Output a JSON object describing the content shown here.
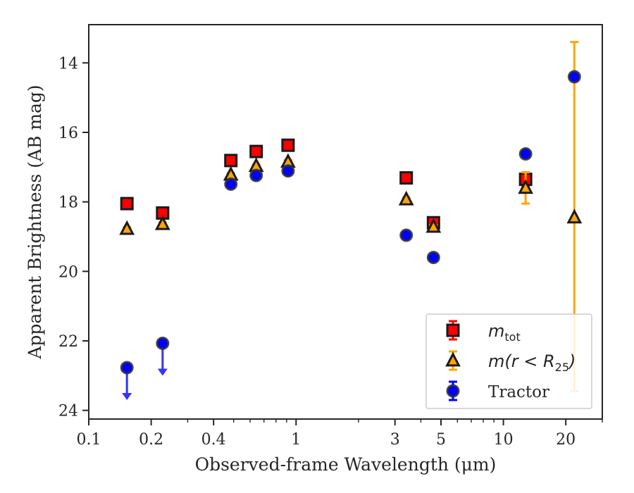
{
  "chart_data": {
    "type": "scatter",
    "title": "",
    "xlabel": "Observed-frame Wavelength (μm)",
    "ylabel": "Apparent Brightness (AB mag)",
    "xscale": "log",
    "yscale": "linear",
    "y_inverted": true,
    "xlim": [
      0.1,
      30
    ],
    "ylim": [
      24.25,
      12.9
    ],
    "xticks": [
      {
        "value": 0.1,
        "label": "0.1"
      },
      {
        "value": 0.2,
        "label": "0.2"
      },
      {
        "value": 0.4,
        "label": "0.4"
      },
      {
        "value": 1,
        "label": "1"
      },
      {
        "value": 3,
        "label": "3"
      },
      {
        "value": 5,
        "label": "5"
      },
      {
        "value": 10,
        "label": "10"
      },
      {
        "value": 20,
        "label": "20"
      }
    ],
    "yticks": [
      {
        "value": 14,
        "label": "14"
      },
      {
        "value": 16,
        "label": "16"
      },
      {
        "value": 18,
        "label": "18"
      },
      {
        "value": 20,
        "label": "20"
      },
      {
        "value": 22,
        "label": "22"
      },
      {
        "value": 24,
        "label": "24"
      }
    ],
    "grid": false,
    "legend": {
      "position": "lower-right",
      "entries": [
        {
          "series": 0,
          "label_math": "m",
          "label_sub": "tot",
          "label_tail": ""
        },
        {
          "series": 1,
          "label_math": "m(r < R",
          "label_sub": "25",
          "label_tail": ")"
        },
        {
          "series": 2,
          "label_math": "",
          "label_sub": "",
          "label_tail": "Tractor"
        }
      ]
    },
    "series": [
      {
        "marker": "square",
        "color": "#ff0000",
        "edge": "#1a1a1a",
        "errcolor": "#ff0000",
        "points": [
          {
            "x": 0.1528,
            "y": 18.05,
            "err": 0.05
          },
          {
            "x": 0.2271,
            "y": 18.32,
            "err": 0.05
          },
          {
            "x": 0.4847,
            "y": 16.81,
            "err": 0.05
          },
          {
            "x": 0.6422,
            "y": 16.55,
            "err": 0.05
          },
          {
            "x": 0.9148,
            "y": 16.37,
            "err": 0.05
          },
          {
            "x": 3.4,
            "y": 17.31,
            "err": 0.05
          },
          {
            "x": 4.6,
            "y": 18.6,
            "err": 0.05
          },
          {
            "x": 12.8,
            "y": 17.35,
            "err": 0.2
          }
        ]
      },
      {
        "marker": "triangle",
        "color": "#ffa500",
        "edge": "#1a1a1a",
        "errcolor": "#ffa500",
        "points": [
          {
            "x": 0.1528,
            "y": 18.78,
            "err": 0.05
          },
          {
            "x": 0.2271,
            "y": 18.64,
            "err": 0.05
          },
          {
            "x": 0.4847,
            "y": 17.22,
            "err": 0.05
          },
          {
            "x": 0.6422,
            "y": 16.97,
            "err": 0.05
          },
          {
            "x": 0.9148,
            "y": 16.85,
            "err": 0.05
          },
          {
            "x": 3.4,
            "y": 17.93,
            "err": 0.05
          },
          {
            "x": 4.6,
            "y": 18.72,
            "err": 0.05
          },
          {
            "x": 12.8,
            "y": 17.6,
            "err": 0.45
          },
          {
            "x": 22.0,
            "y": 18.45,
            "err_low": 5.05,
            "err_high": 5.0
          }
        ]
      },
      {
        "marker": "circle",
        "color": "#0000ff",
        "edge": "#333333",
        "errcolor": "#0000ff",
        "points": [
          {
            "x": 0.1528,
            "y": 22.77,
            "upper_limit": true
          },
          {
            "x": 0.2271,
            "y": 22.07,
            "upper_limit": true
          },
          {
            "x": 0.4847,
            "y": 17.49,
            "err": 0.05
          },
          {
            "x": 0.6422,
            "y": 17.24,
            "err": 0.05
          },
          {
            "x": 0.9148,
            "y": 17.11,
            "err": 0.05
          },
          {
            "x": 3.4,
            "y": 18.96,
            "err": 0.05
          },
          {
            "x": 4.6,
            "y": 19.6,
            "err": 0.05
          },
          {
            "x": 12.8,
            "y": 16.62,
            "err": 0.05
          },
          {
            "x": 22.0,
            "y": 14.4,
            "err": 0.05
          }
        ]
      }
    ]
  }
}
